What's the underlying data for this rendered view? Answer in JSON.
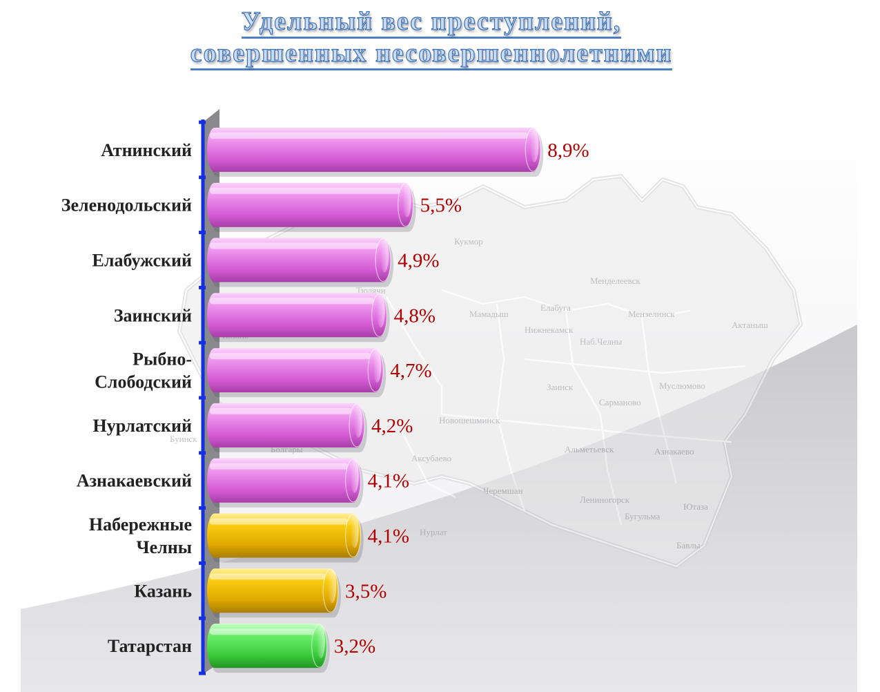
{
  "title": {
    "line1": "Удельный вес преступлений,",
    "line2": "совершенных несовершеннолетними"
  },
  "chart_data": {
    "type": "bar",
    "orientation": "horizontal",
    "title": "Удельный вес преступлений, совершенных несовершеннолетними",
    "xlim": [
      0,
      9
    ],
    "categories": [
      [
        "Атнинский"
      ],
      [
        "Зеленодольский"
      ],
      [
        "Елабужский"
      ],
      [
        "Заинский"
      ],
      [
        "Рыбно-",
        "Слободский"
      ],
      [
        "Нурлатский"
      ],
      [
        "Азнакаевский"
      ],
      [
        "Набережные",
        "Челны"
      ],
      [
        "Казань"
      ],
      [
        "Татарстан"
      ]
    ],
    "values": [
      8.9,
      5.5,
      4.9,
      4.8,
      4.7,
      4.2,
      4.1,
      4.1,
      3.5,
      3.2
    ],
    "value_labels": [
      "8,9%",
      "5,5%",
      "4,9%",
      "4,8%",
      "4,7%",
      "4,2%",
      "4,1%",
      "4,1%",
      "3,5%",
      "3,2%"
    ],
    "bar_colors": [
      "#e888e8",
      "#e888e8",
      "#e888e8",
      "#e888e8",
      "#e888e8",
      "#e888e8",
      "#e888e8",
      "#f3c200",
      "#f3c200",
      "#55e055"
    ],
    "label_color": "#b00000",
    "axis_color": "#1530e0"
  },
  "map_labels": [
    "Кукмор",
    "Мамадыш",
    "Елабуга",
    "Мензелинск",
    "Менделеевск",
    "Актаныш",
    "Нижнекамск",
    "Наб.Челны",
    "Заинск",
    "Муслюмово",
    "Сарманово",
    "Альметьевск",
    "Азнакаево",
    "Лениногорск",
    "Бугульма",
    "Ютаза",
    "Бавлы",
    "Черемшан",
    "Нурлат",
    "Аксубаево",
    "Новошешминск",
    "Болгары",
    "Буинск",
    "Казань",
    "Тюлячи"
  ]
}
